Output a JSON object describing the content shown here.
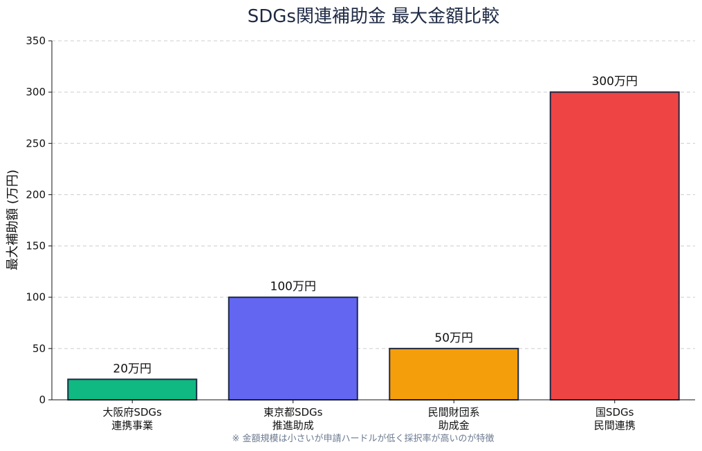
{
  "chart_data": {
    "type": "bar",
    "title": "SDGs関連補助金 最大金額比較",
    "ylabel": "最大補助額 (万円)",
    "xlabel": "",
    "ylim": [
      0,
      350
    ],
    "yticks": [
      0,
      50,
      100,
      150,
      200,
      250,
      300,
      350
    ],
    "grid": true,
    "categories": [
      [
        "大阪府SDGs",
        "連携事業"
      ],
      [
        "東京都SDGs",
        "推進助成"
      ],
      [
        "民間財団系",
        "助成金"
      ],
      [
        "国SDGs",
        "民間連携"
      ]
    ],
    "values": [
      20,
      100,
      50,
      300
    ],
    "value_labels": [
      "20万円",
      "100万円",
      "50万円",
      "300万円"
    ],
    "colors": [
      "#10b981",
      "#6366f1",
      "#f59e0b",
      "#ef4444"
    ],
    "edge_color": "#1e2a44",
    "note": "※ 金額規模は小さいが申請ハードルが低く採択率が高いのが特徴"
  }
}
